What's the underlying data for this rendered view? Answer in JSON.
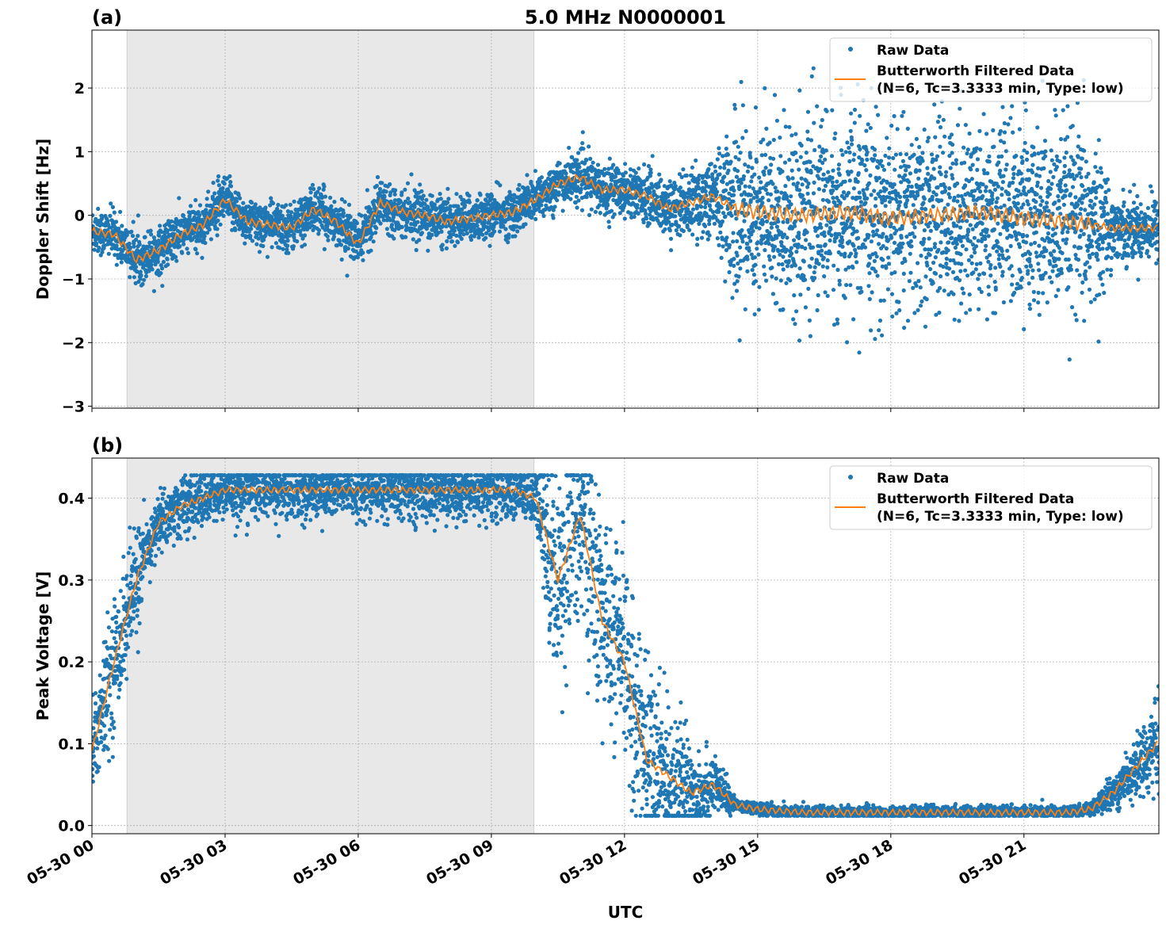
{
  "chart_data": [
    {
      "type": "scatter",
      "panel_label": "(a)",
      "title": "5.0 MHz N0000001",
      "ylabel": "Doppler Shift [Hz]",
      "xlabel": "",
      "xlim_hours": [
        0,
        24.04
      ],
      "ylim": [
        -3.03,
        2.91
      ],
      "yticks": [
        -3,
        -2,
        -1,
        0,
        1,
        2
      ],
      "ytick_labels": [
        "−3",
        "−2",
        "−1",
        "0",
        "1",
        "2"
      ],
      "grid": true,
      "legend_position": "top-right",
      "shaded_interval_hours": [
        0.79,
        9.96
      ],
      "series": [
        {
          "name": "Raw Data",
          "kind": "scatter",
          "color": "#1f77b4"
        },
        {
          "name": "Butterworth Filtered Data\n(N=6, Tc=3.3333 min, Type: low)",
          "kind": "line",
          "color": "#ff7f0e"
        }
      ],
      "legend": [
        "Raw Data",
        "Butterworth Filtered Data",
        "(N=6, Tc=3.3333 min, Type: low)"
      ],
      "filtered_t_hours": [
        0,
        0.5,
        1,
        1.5,
        2,
        2.5,
        3,
        3.5,
        4,
        4.5,
        5,
        5.5,
        6,
        6.5,
        7,
        7.5,
        8,
        8.5,
        9,
        9.5,
        10,
        10.5,
        11,
        11.5,
        12,
        12.5,
        13,
        13.5,
        14,
        14.5,
        15,
        16,
        17,
        18,
        19,
        20,
        21,
        22,
        22.5,
        23,
        23.5,
        24
      ],
      "filtered_values": [
        -0.25,
        -0.3,
        -0.7,
        -0.55,
        -0.3,
        -0.15,
        0.25,
        -0.1,
        -0.15,
        -0.2,
        0.1,
        -0.1,
        -0.45,
        0.2,
        0.05,
        0,
        -0.1,
        -0.05,
        0,
        0.05,
        0.25,
        0.5,
        0.6,
        0.4,
        0.4,
        0.3,
        0.1,
        0.2,
        0.3,
        0.1,
        0.05,
        0,
        0.05,
        -0.05,
        0,
        0.05,
        -0.05,
        -0.1,
        -0.15,
        -0.2,
        -0.2,
        -0.2
      ],
      "raw_spread_t_hours": [
        0,
        10,
        13,
        14,
        14.5,
        22.5,
        23,
        24
      ],
      "raw_spread_values": [
        0.3,
        0.3,
        0.35,
        0.5,
        1.2,
        1.2,
        0.4,
        0.4
      ]
    },
    {
      "type": "scatter",
      "panel_label": "(b)",
      "title": "",
      "ylabel": "Peak Voltage [V]",
      "xlabel": "UTC",
      "xlim_hours": [
        0,
        24.04
      ],
      "ylim": [
        -0.01,
        0.449
      ],
      "yticks": [
        0,
        0.1,
        0.2,
        0.3,
        0.4
      ],
      "ytick_labels": [
        "0.0",
        "0.1",
        "0.2",
        "0.3",
        "0.4"
      ],
      "xticks_hours": [
        0,
        3,
        6,
        9,
        12,
        15,
        18,
        21
      ],
      "xtick_labels": [
        "05-30 00",
        "05-30 03",
        "05-30 06",
        "05-30 09",
        "05-30 12",
        "05-30 15",
        "05-30 18",
        "05-30 21"
      ],
      "grid": true,
      "legend_position": "top-right",
      "shaded_interval_hours": [
        0.79,
        9.96
      ],
      "series": [
        {
          "name": "Raw Data",
          "kind": "scatter",
          "color": "#1f77b4"
        },
        {
          "name": "Butterworth Filtered Data\n(N=6, Tc=3.3333 min, Type: low)",
          "kind": "line",
          "color": "#ff7f0e"
        }
      ],
      "legend": [
        "Raw Data",
        "Butterworth Filtered Data",
        "(N=6, Tc=3.3333 min, Type: low)"
      ],
      "filtered_t_hours": [
        0,
        0.5,
        1,
        1.5,
        2,
        3,
        4,
        5,
        6,
        7,
        8,
        9,
        9.5,
        10,
        10.5,
        11,
        11.5,
        12,
        12.5,
        13,
        13.5,
        14,
        14.5,
        15,
        15.5,
        16,
        18,
        20,
        22,
        22.5,
        23,
        23.5,
        24
      ],
      "filtered_values": [
        0.09,
        0.2,
        0.3,
        0.37,
        0.39,
        0.41,
        0.41,
        0.41,
        0.41,
        0.41,
        0.41,
        0.41,
        0.41,
        0.4,
        0.3,
        0.38,
        0.25,
        0.2,
        0.08,
        0.06,
        0.04,
        0.05,
        0.025,
        0.02,
        0.018,
        0.016,
        0.016,
        0.016,
        0.016,
        0.02,
        0.04,
        0.07,
        0.1
      ],
      "raw_spread_t_hours": [
        0,
        1,
        1.2,
        10,
        10.3,
        12.5,
        14,
        14.5,
        22.5,
        24
      ],
      "raw_spread_values": [
        0.06,
        0.06,
        0.03,
        0.03,
        0.1,
        0.1,
        0.03,
        0.006,
        0.006,
        0.04
      ],
      "raw_max": 0.428
    }
  ]
}
